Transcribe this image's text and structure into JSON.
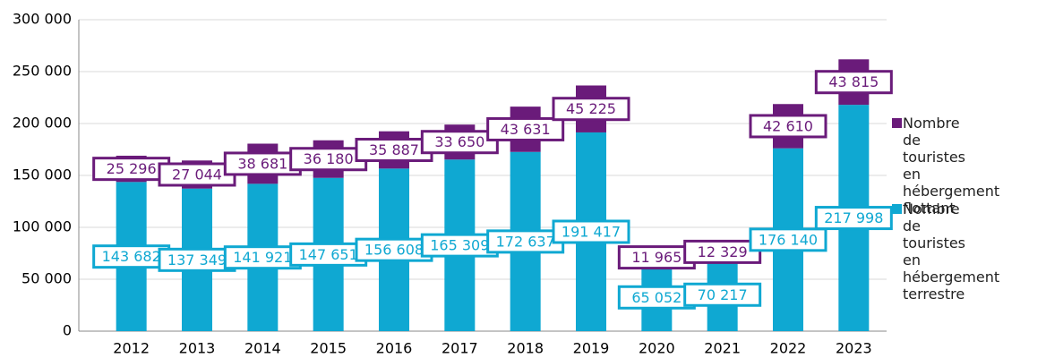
{
  "chart_data": {
    "type": "stacked_bar",
    "categories": [
      "2012",
      "2013",
      "2014",
      "2015",
      "2016",
      "2017",
      "2018",
      "2019",
      "2020",
      "2021",
      "2022",
      "2023"
    ],
    "series": [
      {
        "name": "Nombre de touristes en hébergement terrestre",
        "color": "#0fa8d2",
        "values": [
          143682,
          137349,
          141921,
          147651,
          156608,
          165309,
          172637,
          191417,
          65052,
          70217,
          176140,
          217998
        ],
        "value_labels": [
          "143 682",
          "137 349",
          "141 921",
          "147 651",
          "156 608",
          "165 309",
          "172 637",
          "191 417",
          "65 052",
          "70 217",
          "176 140",
          "217 998"
        ]
      },
      {
        "name": "Nombre de touristes en hébergement flottant",
        "color": "#6a1b7a",
        "values": [
          25296,
          27044,
          38681,
          36180,
          35887,
          33650,
          43631,
          45225,
          11965,
          12329,
          42610,
          43815
        ],
        "value_labels": [
          "25 296",
          "27 044",
          "38 681",
          "36 180",
          "35 887",
          "33 650",
          "43 631",
          "45 225",
          "11 965",
          "12 329",
          "42 610",
          "43 815"
        ]
      }
    ],
    "ylim": [
      0,
      300000
    ],
    "yticks": [
      0,
      {
        "value": 50000,
        "label": "50 000"
      },
      {
        "value": 100000,
        "label": "100 000"
      },
      {
        "value": 150000,
        "label": "150 000"
      },
      {
        "value": 200000,
        "label": "200 000"
      },
      {
        "value": 250000,
        "label": "250 000"
      },
      {
        "value": 300000,
        "label": "300 000"
      }
    ],
    "grid": true
  }
}
